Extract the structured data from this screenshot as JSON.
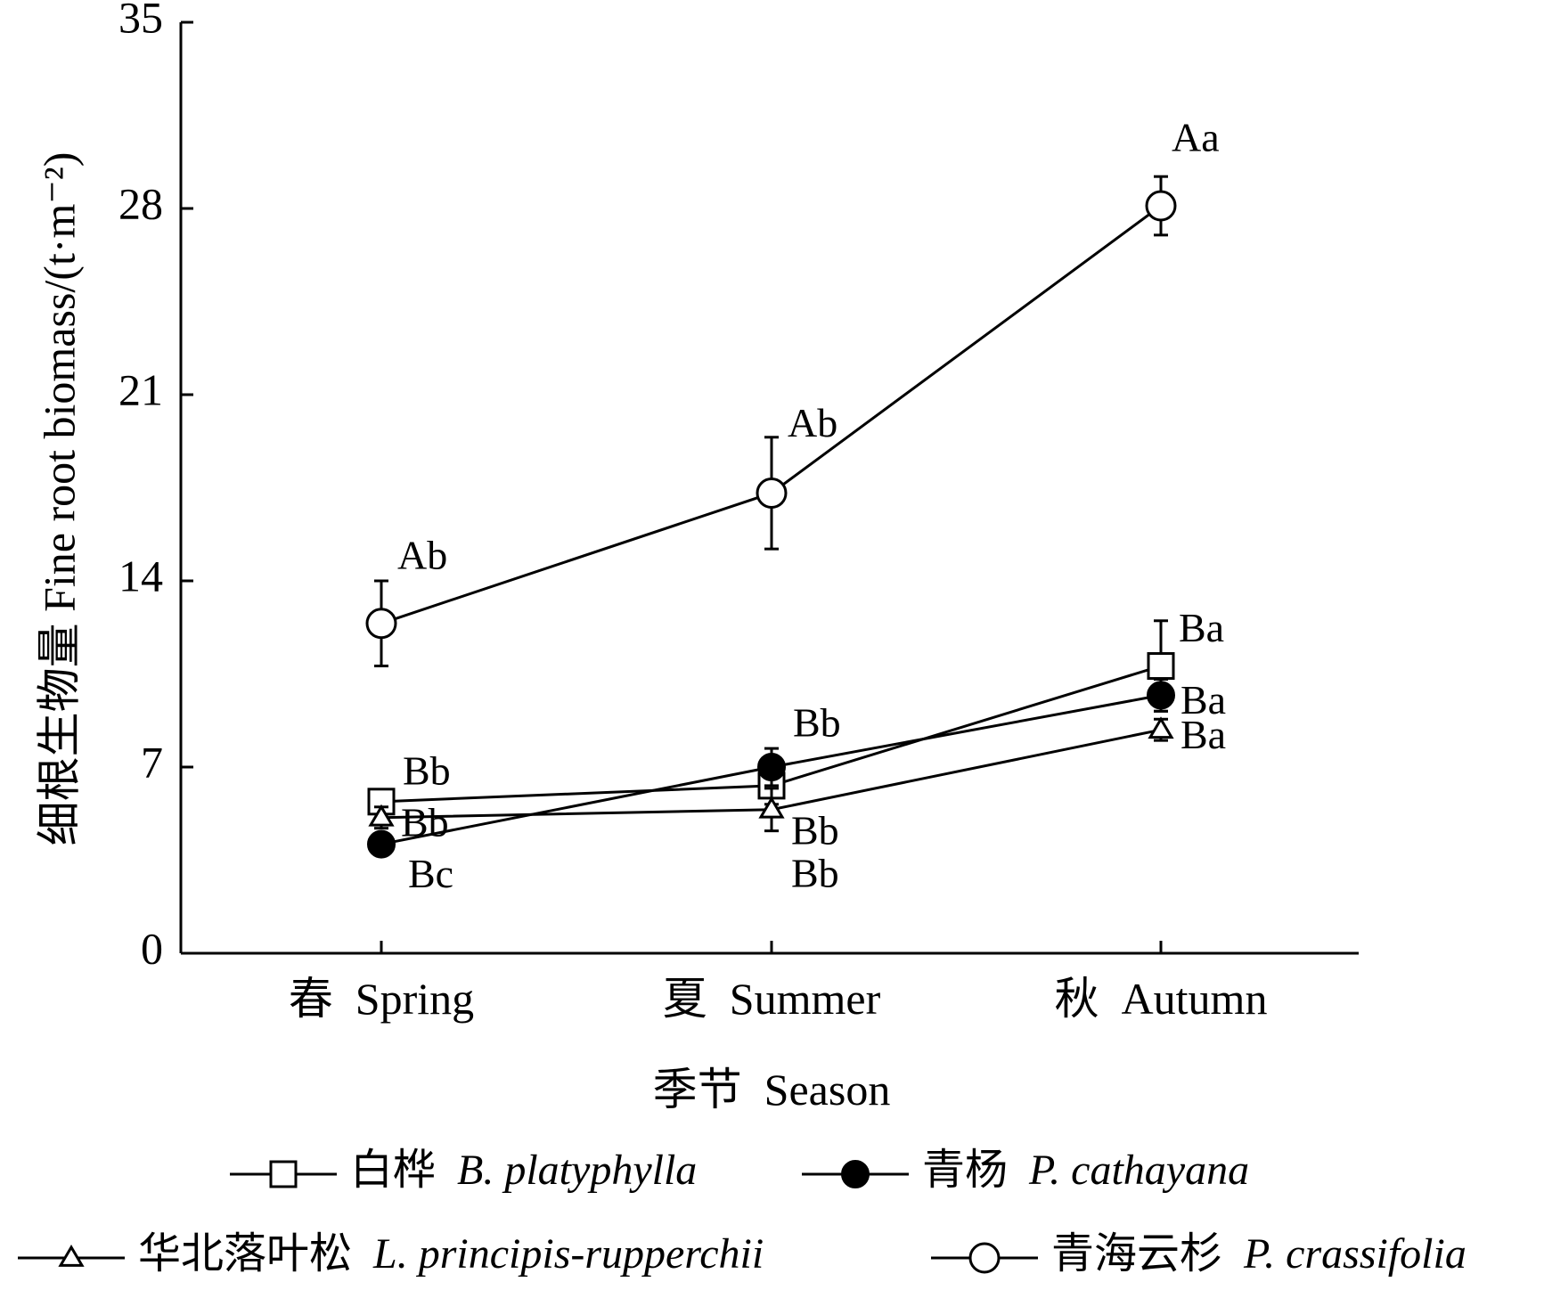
{
  "chart_data": {
    "type": "line",
    "ylabel": "细根生物量  Fine root biomass/(t·m⁻²)",
    "xlabel": "季节  Season",
    "ylim": [
      0,
      35
    ],
    "yticks": [
      "0",
      "7",
      "14",
      "21",
      "28",
      "35"
    ],
    "categories": [
      "春  Spring",
      "夏  Summer",
      "秋  Autumn"
    ],
    "grid": false,
    "legend_position": "bottom",
    "series": [
      {
        "name_cn": "白桦",
        "name_sci": "B. platyphylla",
        "marker": "square-open",
        "values": [
          5.7,
          6.3,
          10.8
        ],
        "errors": [
          0.4,
          0.7,
          1.7
        ],
        "labels": [
          "Bb",
          "Bb",
          "Ba"
        ]
      },
      {
        "name_cn": "青杨",
        "name_sci": "P. cathayana",
        "marker": "circle-filled",
        "values": [
          4.1,
          7.0,
          9.7
        ],
        "errors": [
          0.3,
          0.7,
          0.6
        ],
        "labels": [
          "Bc",
          "Bb",
          "Ba"
        ]
      },
      {
        "name_cn": "华北落叶松",
        "name_sci": "L. principis-rupperchii",
        "marker": "triangle-open",
        "values": [
          5.1,
          5.4,
          8.4
        ],
        "errors": [
          0.4,
          0.8,
          0.4
        ],
        "labels": [
          "Bb",
          "Bb",
          "Ba"
        ]
      },
      {
        "name_cn": "青海云杉",
        "name_sci": "P. crassifolia",
        "marker": "circle-open",
        "values": [
          12.4,
          17.3,
          28.1
        ],
        "errors": [
          1.6,
          2.1,
          1.1
        ],
        "labels": [
          "Ab",
          "Ab",
          "Aa"
        ]
      }
    ]
  }
}
